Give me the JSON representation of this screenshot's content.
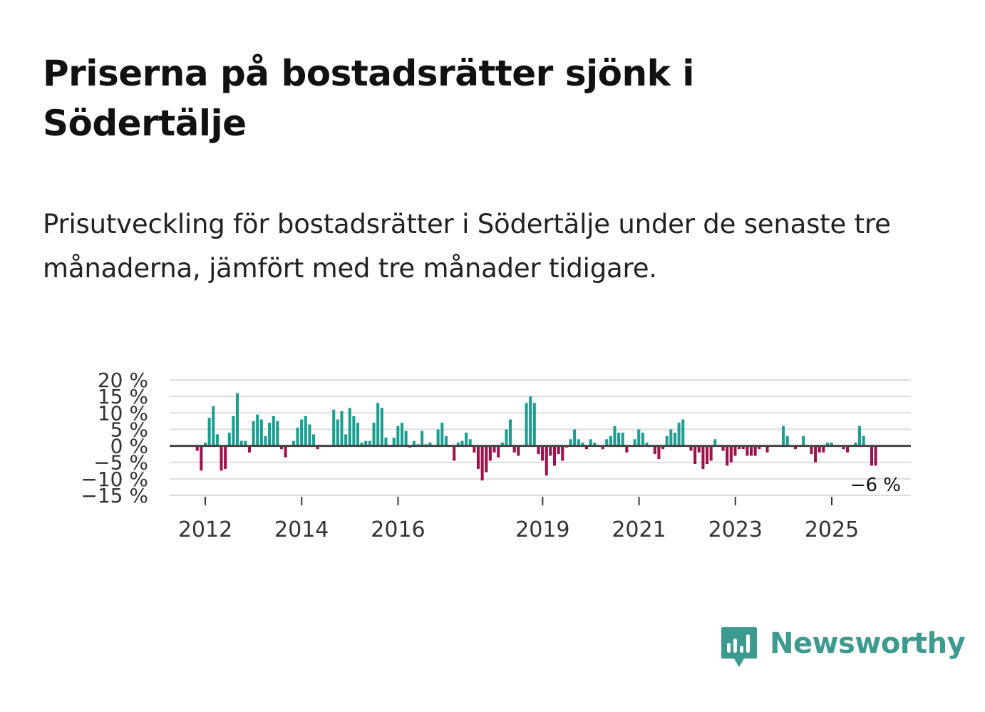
{
  "title": "Priserna på bostadsrätter sjönk i Södertälje",
  "subtitle": "Prisutveckling för bostadsrätter i Södertälje under de senaste tre månaderna, jämfört med tre månader tidigare.",
  "logo": {
    "text": "Newsworthy",
    "color": "#3d9a8f"
  },
  "chart_data": {
    "type": "bar",
    "title": "",
    "xlabel": "",
    "ylabel": "",
    "ylim": [
      -15,
      20
    ],
    "y_ticks": [
      20,
      15,
      10,
      5,
      0,
      -5,
      -10,
      -15
    ],
    "y_tick_labels": [
      "20 %",
      "15 %",
      "10 %",
      "5 %",
      "0 %",
      "−5 %",
      "−10 %",
      "−15 %"
    ],
    "x_ticks": [
      2012,
      2014,
      2016,
      2019,
      2021,
      2023,
      2025
    ],
    "x_tick_labels": [
      "2012",
      "2014",
      "2016",
      "2019",
      "2021",
      "2023",
      "2025"
    ],
    "x_start": 2011.833,
    "step_years": 0.0833,
    "positive_color": "#1a9e90",
    "negative_color": "#a0104a",
    "last_label": "−6 %",
    "values": [
      -1.5,
      -7.5,
      1,
      8.5,
      12,
      3.5,
      -7.5,
      -7,
      4,
      9,
      16,
      1.5,
      1.5,
      -2,
      7.5,
      9.5,
      8,
      3,
      7,
      9,
      7.5,
      -1,
      -3.5,
      0,
      1.5,
      5.5,
      8,
      9,
      6.5,
      3.5,
      -1,
      0,
      0,
      0,
      11,
      8,
      10.5,
      3.5,
      11.5,
      9,
      7,
      1,
      1.5,
      1.5,
      7,
      13,
      11.5,
      2.5,
      0,
      2.5,
      6,
      7,
      4.5,
      -0.5,
      1.5,
      0.5,
      4.5,
      0.5,
      1,
      0,
      5,
      7,
      3,
      0,
      -4.5,
      1,
      1.5,
      4,
      2,
      -2,
      -7,
      -10.5,
      -8,
      -4.5,
      -2,
      -3.5,
      1,
      5,
      8,
      -2,
      -3,
      0,
      13,
      15,
      13,
      -2.5,
      -4.5,
      -9,
      -3,
      -6,
      -2.5,
      -4.5,
      -0.5,
      2,
      5,
      2,
      1,
      -1,
      2,
      1,
      0,
      -1,
      2,
      3,
      6,
      4,
      4,
      -2,
      0,
      2,
      5,
      4,
      1,
      0,
      -2.5,
      -4,
      -1,
      3,
      5,
      4,
      7,
      8,
      0,
      -1.5,
      -5.5,
      -2,
      -7,
      -5.5,
      -4.5,
      2,
      0,
      -1.5,
      -6,
      -5,
      -3,
      -1,
      -1,
      -3,
      -3,
      -3,
      -1,
      0,
      -2,
      0,
      0,
      0,
      6,
      3,
      0,
      -1,
      0,
      3,
      0,
      -2.5,
      -5,
      -2,
      -2,
      1,
      1,
      0,
      0,
      -1,
      -2,
      0,
      1,
      6,
      3,
      0,
      -6,
      -6
    ]
  }
}
